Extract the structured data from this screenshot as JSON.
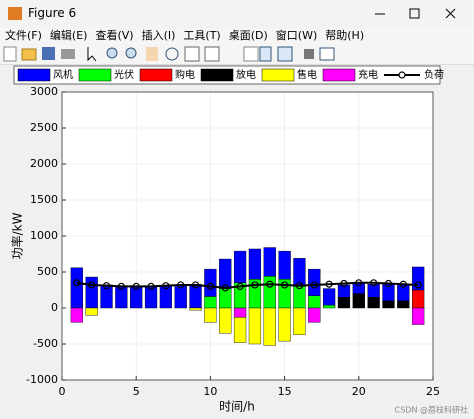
{
  "window": {
    "title": "Figure 6",
    "menu": [
      "文件(F)",
      "编辑(E)",
      "查看(V)",
      "插入(I)",
      "工具(T)",
      "桌面(D)",
      "窗口(W)",
      "帮助(H)"
    ],
    "watermark": "CSDN @荔枝科研社"
  },
  "chart_data": {
    "type": "bar",
    "stacked": true,
    "grid": true,
    "xlabel": "时间/h",
    "ylabel": "功率/kW",
    "x": [
      1,
      2,
      3,
      4,
      5,
      6,
      7,
      8,
      9,
      10,
      11,
      12,
      13,
      14,
      15,
      16,
      17,
      18,
      19,
      20,
      21,
      22,
      23,
      24
    ],
    "xlim": [
      0,
      25
    ],
    "xticks": [
      0,
      5,
      10,
      15,
      20,
      25
    ],
    "ylim": [
      -1000,
      3000
    ],
    "yticks": [
      -1000,
      -500,
      0,
      500,
      1000,
      1500,
      2000,
      2500,
      3000
    ],
    "series": [
      {
        "name": "风机",
        "color": "#0000ff",
        "values": [
          560,
          430,
          320,
          310,
          300,
          300,
          310,
          320,
          330,
          380,
          410,
          440,
          420,
          400,
          390,
          390,
          370,
          230,
          170,
          150,
          180,
          230,
          230,
          320
        ]
      },
      {
        "name": "光伏",
        "color": "#00ff00",
        "values": [
          0,
          0,
          0,
          0,
          0,
          0,
          0,
          0,
          0,
          160,
          270,
          350,
          400,
          440,
          400,
          300,
          170,
          40,
          0,
          0,
          0,
          0,
          0,
          0
        ]
      },
      {
        "name": "购电",
        "color": "#ff0000",
        "values": [
          0,
          0,
          0,
          0,
          0,
          0,
          0,
          0,
          0,
          0,
          0,
          0,
          0,
          0,
          0,
          0,
          0,
          0,
          0,
          0,
          0,
          0,
          0,
          250
        ]
      },
      {
        "name": "放电",
        "color": "#000000",
        "values": [
          0,
          0,
          0,
          0,
          0,
          0,
          0,
          0,
          0,
          0,
          0,
          0,
          0,
          0,
          0,
          0,
          0,
          0,
          150,
          200,
          150,
          100,
          100,
          0
        ]
      },
      {
        "name": "售电",
        "color": "#ffff00",
        "values": [
          0,
          -100,
          0,
          0,
          0,
          0,
          0,
          0,
          -30,
          -200,
          -350,
          -350,
          -500,
          -520,
          -460,
          -370,
          0,
          0,
          0,
          0,
          0,
          0,
          0,
          0
        ]
      },
      {
        "name": "充电",
        "color": "#ff00ff",
        "values": [
          -200,
          0,
          0,
          0,
          0,
          0,
          0,
          0,
          0,
          0,
          0,
          -130,
          0,
          0,
          0,
          0,
          -200,
          0,
          0,
          0,
          0,
          0,
          0,
          -230
        ]
      },
      {
        "name": "负荷",
        "color": "#000000",
        "style": "line",
        "values": [
          350,
          320,
          310,
          300,
          300,
          300,
          310,
          320,
          320,
          300,
          280,
          300,
          320,
          330,
          320,
          310,
          320,
          330,
          340,
          350,
          350,
          340,
          330,
          320
        ]
      }
    ]
  }
}
